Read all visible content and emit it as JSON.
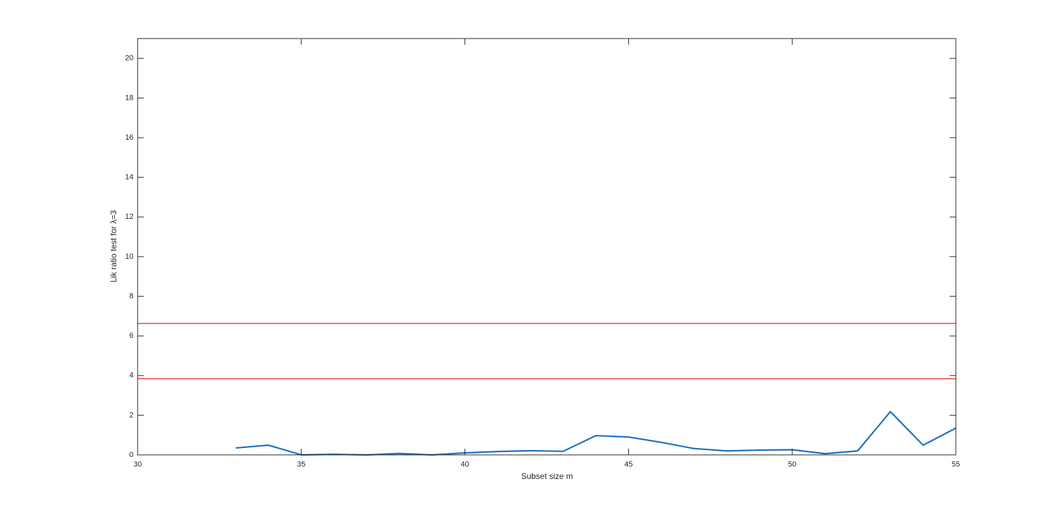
{
  "chart_data": {
    "type": "line",
    "xlabel": "Subset size m",
    "ylabel": "Lik ratio test for λ=3",
    "x": [
      33,
      34,
      35,
      36,
      37,
      38,
      39,
      40,
      41,
      42,
      43,
      44,
      45,
      46,
      47,
      48,
      49,
      50,
      51,
      52,
      53,
      54,
      55
    ],
    "series": [
      {
        "color": "#1f6fbf",
        "values": [
          0.35,
          0.49,
          0.0,
          0.03,
          0.0,
          0.07,
          0.0,
          0.1,
          0.17,
          0.21,
          0.18,
          0.97,
          0.9,
          0.63,
          0.32,
          0.2,
          0.24,
          0.26,
          0.06,
          0.2,
          2.18,
          0.49,
          1.35
        ]
      }
    ],
    "reference_lines": [
      3.84,
      6.63
    ],
    "reference_color": "#e8221e",
    "xlim": [
      30,
      55
    ],
    "ylim": [
      0,
      21
    ],
    "xticks": [
      30,
      35,
      40,
      45,
      50,
      55
    ],
    "yticks": [
      0,
      2,
      4,
      6,
      8,
      10,
      12,
      14,
      16,
      18,
      20
    ],
    "grid": false
  }
}
